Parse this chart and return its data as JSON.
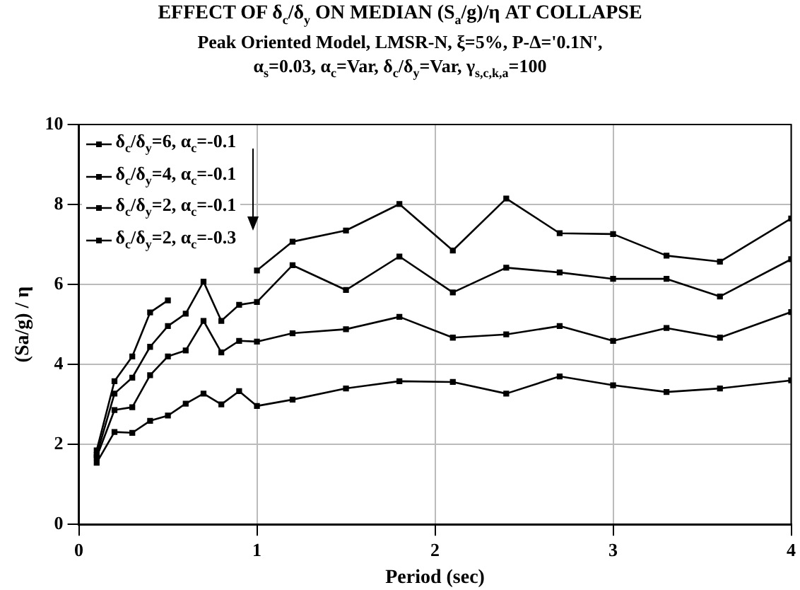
{
  "chart_data": {
    "type": "line",
    "title": "EFFECT OF δ$_{c}$/δ$_{y}$ ON MEDIAN (S$_{a}$/g)/η AT COLLAPSE",
    "subtitle": "Peak Oriented Model, LMSR-N, ξ=5%, P-Δ='0.1N',\nα$_{s}$=0.03, α$_{c}$=Var, δ$_{c}$/δ$_{y}$=Var, γ$_{s,c,k,a}$=100",
    "xlabel": "Period (sec)",
    "ylabel": "(Sa/g) / η",
    "x": [
      0.1,
      0.2,
      0.3,
      0.4,
      0.5,
      0.6,
      0.7,
      0.8,
      0.9,
      1.0,
      1.2,
      1.5,
      1.8,
      2.1,
      2.4,
      2.7,
      3.0,
      3.3,
      3.6,
      4.0
    ],
    "series": [
      {
        "name": "δ$_{c}$/δ$_{y}$=6, α$_{c}$=-0.1",
        "color": "#000000",
        "values": [
          1.85,
          3.58,
          4.2,
          5.3,
          5.6,
          null,
          null,
          null,
          null,
          6.35,
          7.07,
          7.35,
          8.01,
          6.85,
          8.15,
          7.28,
          7.26,
          6.72,
          6.57,
          7.65
        ]
      },
      {
        "name": "δ$_{c}$/δ$_{y}$=4, α$_{c}$=-0.1",
        "color": "#000000",
        "values": [
          1.73,
          3.27,
          3.67,
          4.44,
          4.96,
          5.27,
          6.07,
          5.09,
          5.49,
          5.56,
          6.48,
          5.86,
          6.7,
          5.8,
          6.42,
          6.3,
          6.14,
          6.14,
          5.7,
          6.63
        ]
      },
      {
        "name": "δ$_{c}$/δ$_{y}$=2, α$_{c}$=-0.1",
        "color": "#000000",
        "values": [
          1.68,
          2.86,
          2.93,
          3.73,
          4.2,
          4.35,
          5.09,
          4.3,
          4.59,
          4.57,
          4.78,
          4.88,
          5.19,
          4.67,
          4.75,
          4.96,
          4.59,
          4.91,
          4.67,
          5.31
        ]
      },
      {
        "name": "δ$_{c}$/δ$_{y}$=2, α$_{c}$=-0.3",
        "color": "#000000",
        "values": [
          1.54,
          2.31,
          2.29,
          2.59,
          2.72,
          3.02,
          3.27,
          3.0,
          3.33,
          2.96,
          3.12,
          3.4,
          3.58,
          3.56,
          3.27,
          3.7,
          3.48,
          3.31,
          3.4,
          3.6
        ]
      }
    ],
    "xlim": [
      0,
      4
    ],
    "xticks": [
      0,
      1,
      2,
      3,
      4
    ],
    "ylim": [
      0,
      10
    ],
    "yticks": [
      0,
      2,
      4,
      6,
      8,
      10
    ],
    "grid": true,
    "legend": "top left",
    "marker": "square",
    "line_style": "solid"
  }
}
